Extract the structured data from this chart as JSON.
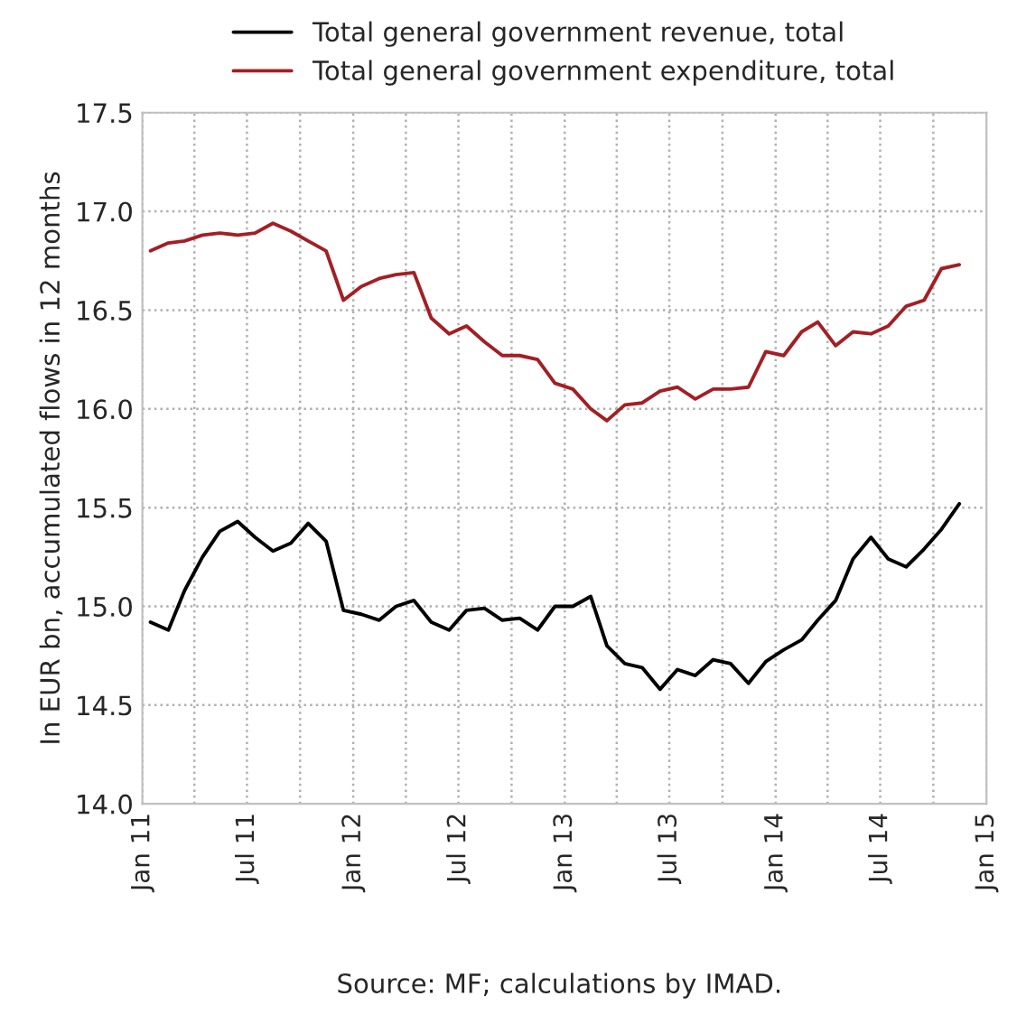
{
  "chart_data": {
    "type": "line",
    "ylabel": "In EUR bn, accumulated flows in 12 months",
    "annotations": [
      "Source: MF; calculations by IMAD."
    ],
    "x": [
      "2011-01-15",
      "2011-02-15",
      "2011-03-15",
      "2011-04-15",
      "2011-05-15",
      "2011-06-15",
      "2011-07-15",
      "2011-08-15",
      "2011-09-15",
      "2011-10-15",
      "2011-11-15",
      "2011-12-15",
      "2012-01-15",
      "2012-02-15",
      "2012-03-15",
      "2012-04-15",
      "2012-05-15",
      "2012-06-15",
      "2012-07-15",
      "2012-08-15",
      "2012-09-15",
      "2012-10-15",
      "2012-11-15",
      "2012-12-15",
      "2013-01-15",
      "2013-02-15",
      "2013-03-15",
      "2013-04-15",
      "2013-05-15",
      "2013-06-15",
      "2013-07-15",
      "2013-08-15",
      "2013-09-15",
      "2013-10-15",
      "2013-11-15",
      "2013-12-15",
      "2014-01-15",
      "2014-02-15",
      "2014-03-15",
      "2014-04-15",
      "2014-05-15",
      "2014-06-15",
      "2014-07-15",
      "2014-08-15",
      "2014-09-15",
      "2014-10-15",
      "2014-11-15"
    ],
    "series": [
      {
        "name": "Total general government revenue, total",
        "color": "#000000",
        "values": [
          14.92,
          14.88,
          15.08,
          15.25,
          15.38,
          15.43,
          15.35,
          15.28,
          15.32,
          15.42,
          15.33,
          14.98,
          14.96,
          14.93,
          15.0,
          15.03,
          14.92,
          14.88,
          14.98,
          14.99,
          14.93,
          14.94,
          14.88,
          15.0,
          15.0,
          15.05,
          14.8,
          14.71,
          14.69,
          14.58,
          14.68,
          14.65,
          14.73,
          14.71,
          14.61,
          14.72,
          14.78,
          14.83,
          14.93,
          15.03,
          15.24,
          15.35,
          15.24,
          15.2,
          15.29,
          15.39,
          15.52
        ]
      },
      {
        "name": "Total general government expenditure, total",
        "color": "#a31f24",
        "values": [
          16.8,
          16.84,
          16.85,
          16.88,
          16.89,
          16.88,
          16.89,
          16.94,
          16.9,
          16.85,
          16.8,
          16.55,
          16.62,
          16.66,
          16.68,
          16.69,
          16.46,
          16.38,
          16.42,
          16.34,
          16.27,
          16.27,
          16.25,
          16.13,
          16.1,
          16.0,
          15.94,
          16.02,
          16.03,
          16.09,
          16.11,
          16.05,
          16.1,
          16.1,
          16.11,
          16.29,
          16.27,
          16.39,
          16.44,
          16.32,
          16.39,
          16.38,
          16.42,
          16.52,
          16.55,
          16.71,
          16.73
        ]
      }
    ],
    "xlim": [
      "2011-01",
      "2015-01"
    ],
    "xticks": [
      {
        "value": "2011-01",
        "label": "Jan 11"
      },
      {
        "value": "2011-04",
        "label": null
      },
      {
        "value": "2011-07",
        "label": "Jul 11"
      },
      {
        "value": "2011-10",
        "label": null
      },
      {
        "value": "2012-01",
        "label": "Jan 12"
      },
      {
        "value": "2012-04",
        "label": null
      },
      {
        "value": "2012-07",
        "label": "Jul 12"
      },
      {
        "value": "2012-10",
        "label": null
      },
      {
        "value": "2013-01",
        "label": "Jan 13"
      },
      {
        "value": "2013-04",
        "label": null
      },
      {
        "value": "2013-07",
        "label": "Jul 13"
      },
      {
        "value": "2013-10",
        "label": null
      },
      {
        "value": "2014-01",
        "label": "Jan 14"
      },
      {
        "value": "2014-04",
        "label": null
      },
      {
        "value": "2014-07",
        "label": "Jul 14"
      },
      {
        "value": "2014-10",
        "label": null
      },
      {
        "value": "2015-01",
        "label": "Jan 15"
      }
    ],
    "ylim": [
      14.0,
      17.5
    ],
    "yticks": [
      {
        "value": 14.0,
        "label": "14.0"
      },
      {
        "value": 14.5,
        "label": "14.5"
      },
      {
        "value": 15.0,
        "label": "15.0"
      },
      {
        "value": 15.5,
        "label": "15.5"
      },
      {
        "value": 16.0,
        "label": "16.0"
      },
      {
        "value": 16.5,
        "label": "16.5"
      },
      {
        "value": 17.0,
        "label": "17.0"
      },
      {
        "value": 17.5,
        "label": "17.5"
      }
    ],
    "grid": true,
    "legend": "top",
    "marker": "none",
    "line_style": "solid"
  }
}
